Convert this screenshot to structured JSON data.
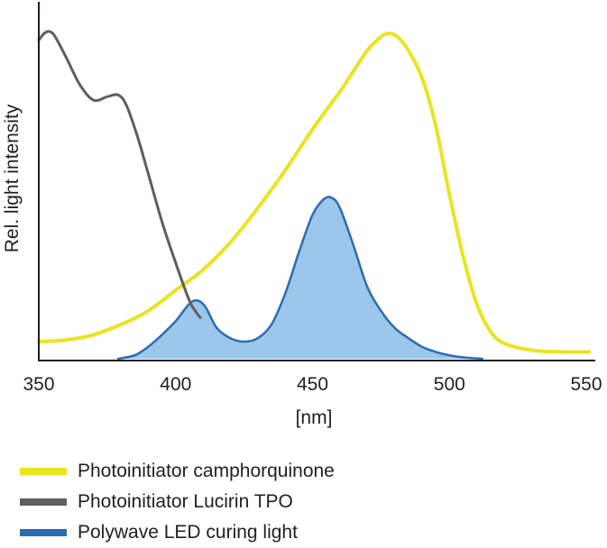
{
  "chart_data": {
    "type": "line",
    "xlabel": "[nm]",
    "ylabel": "Rel. light intensity",
    "xlim": [
      350,
      550
    ],
    "ylim": [
      0,
      1
    ],
    "x_ticks": [
      "350",
      "400",
      "450",
      "500",
      "550"
    ],
    "grid": false,
    "legend_position": "bottom",
    "series": [
      {
        "name": "Photoinitiator camphorquinone",
        "color": "#e8e521",
        "fill": false,
        "points": [
          [
            350,
            0.05
          ],
          [
            360,
            0.055
          ],
          [
            370,
            0.07
          ],
          [
            380,
            0.1
          ],
          [
            390,
            0.14
          ],
          [
            400,
            0.2
          ],
          [
            410,
            0.26
          ],
          [
            420,
            0.34
          ],
          [
            430,
            0.44
          ],
          [
            440,
            0.55
          ],
          [
            450,
            0.67
          ],
          [
            460,
            0.78
          ],
          [
            465,
            0.84
          ],
          [
            470,
            0.9
          ],
          [
            475,
            0.94
          ],
          [
            478,
            0.95
          ],
          [
            481,
            0.94
          ],
          [
            485,
            0.9
          ],
          [
            490,
            0.82
          ],
          [
            495,
            0.68
          ],
          [
            500,
            0.48
          ],
          [
            505,
            0.3
          ],
          [
            510,
            0.16
          ],
          [
            515,
            0.08
          ],
          [
            520,
            0.045
          ],
          [
            530,
            0.025
          ],
          [
            540,
            0.02
          ],
          [
            551,
            0.02
          ]
        ]
      },
      {
        "name": "Photoinitiator Lucirin TPO",
        "color": "#5e5e60",
        "fill": false,
        "points": [
          [
            350,
            0.93
          ],
          [
            352,
            0.95
          ],
          [
            354,
            0.955
          ],
          [
            356,
            0.94
          ],
          [
            360,
            0.88
          ],
          [
            365,
            0.8
          ],
          [
            370,
            0.755
          ],
          [
            375,
            0.765
          ],
          [
            379,
            0.77
          ],
          [
            382,
            0.74
          ],
          [
            386,
            0.65
          ],
          [
            390,
            0.54
          ],
          [
            395,
            0.4
          ],
          [
            400,
            0.28
          ],
          [
            405,
            0.17
          ],
          [
            408,
            0.13
          ],
          [
            409,
            0.12
          ]
        ]
      },
      {
        "name": "Polywave LED curing light",
        "color": "#2b6cb3",
        "fill_color": "#9cc7ea",
        "fill": true,
        "points": [
          [
            379,
            0
          ],
          [
            385,
            0.01
          ],
          [
            390,
            0.035
          ],
          [
            395,
            0.07
          ],
          [
            400,
            0.11
          ],
          [
            405,
            0.16
          ],
          [
            408,
            0.17
          ],
          [
            411,
            0.15
          ],
          [
            415,
            0.09
          ],
          [
            420,
            0.06
          ],
          [
            425,
            0.05
          ],
          [
            430,
            0.06
          ],
          [
            435,
            0.1
          ],
          [
            440,
            0.19
          ],
          [
            445,
            0.31
          ],
          [
            450,
            0.42
          ],
          [
            454,
            0.465
          ],
          [
            457,
            0.47
          ],
          [
            460,
            0.44
          ],
          [
            465,
            0.33
          ],
          [
            470,
            0.21
          ],
          [
            475,
            0.14
          ],
          [
            480,
            0.09
          ],
          [
            485,
            0.06
          ],
          [
            490,
            0.035
          ],
          [
            495,
            0.02
          ],
          [
            500,
            0.01
          ],
          [
            505,
            0.004
          ],
          [
            512,
            0
          ]
        ]
      }
    ]
  }
}
